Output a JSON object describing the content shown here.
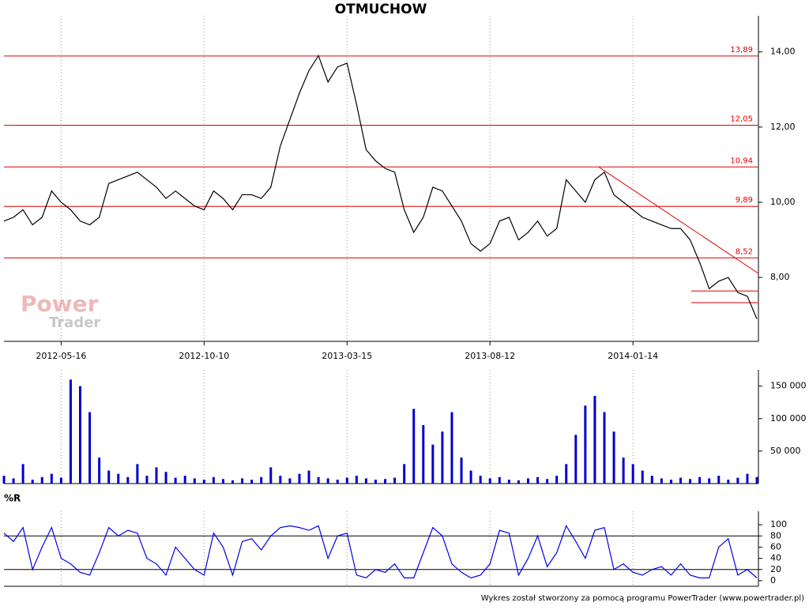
{
  "chart_data": [
    {
      "type": "line",
      "title": "OTMUCHOW",
      "color": "#000000",
      "values": [
        9.5,
        9.6,
        9.8,
        9.4,
        9.6,
        10.3,
        10.0,
        9.8,
        9.5,
        9.4,
        9.6,
        10.5,
        10.6,
        10.7,
        10.8,
        10.6,
        10.4,
        10.1,
        10.3,
        10.1,
        9.9,
        9.8,
        10.3,
        10.1,
        9.8,
        10.2,
        10.2,
        10.1,
        10.4,
        11.5,
        12.2,
        12.9,
        13.5,
        13.9,
        13.2,
        13.6,
        13.7,
        12.6,
        11.4,
        11.1,
        10.9,
        10.8,
        9.8,
        9.2,
        9.6,
        10.4,
        10.3,
        9.9,
        9.5,
        8.9,
        8.7,
        8.9,
        9.5,
        9.6,
        9.0,
        9.2,
        9.5,
        9.1,
        9.3,
        10.6,
        10.3,
        10.0,
        10.6,
        10.8,
        10.2,
        10.0,
        9.8,
        9.6,
        9.5,
        9.4,
        9.3,
        9.3,
        9.0,
        8.4,
        7.7,
        7.9,
        8.0,
        7.6,
        7.5,
        6.9
      ],
      "xticks": [
        {
          "value": 6,
          "label": "2012-05-16"
        },
        {
          "value": 21,
          "label": "2012-10-10"
        },
        {
          "value": 36,
          "label": "2013-03-15"
        },
        {
          "value": 51,
          "label": "2013-08-12"
        },
        {
          "value": 66,
          "label": "2014-01-14"
        }
      ],
      "ylim": [
        6.3,
        14.75
      ],
      "yticks": [
        {
          "value": 8,
          "label": "8,00"
        },
        {
          "value": 10,
          "label": "10,00"
        },
        {
          "value": 12,
          "label": "12,00"
        },
        {
          "value": 14,
          "label": "14,00"
        }
      ],
      "levels": [
        {
          "value": 13.89,
          "label": "13,89"
        },
        {
          "value": 12.05,
          "label": "12,05"
        },
        {
          "value": 10.94,
          "label": "10,94"
        },
        {
          "value": 9.89,
          "label": "9,89"
        },
        {
          "value": 8.52,
          "label": "8,52"
        }
      ],
      "level_color": "#e00000",
      "trendlines": [
        {
          "x": [
            62.4,
            79.2
          ],
          "y": [
            10.94,
            8.1
          ]
        },
        {
          "x": [
            72.1,
            79.2
          ],
          "y": [
            7.64,
            7.64
          ]
        },
        {
          "x": [
            72.1,
            79.2
          ],
          "y": [
            7.33,
            7.33
          ]
        }
      ],
      "logo": [
        "Power",
        "Trader"
      ]
    },
    {
      "type": "bar",
      "color": "#0000cc",
      "values": [
        12000,
        8000,
        30000,
        6000,
        10000,
        15000,
        9000,
        160000,
        150000,
        110000,
        40000,
        20000,
        15000,
        10000,
        30000,
        12000,
        25000,
        18000,
        9000,
        12000,
        8000,
        6000,
        10000,
        7000,
        5000,
        8000,
        6000,
        10000,
        25000,
        12000,
        8000,
        15000,
        20000,
        10000,
        8000,
        6000,
        9000,
        12000,
        8000,
        6000,
        7000,
        9000,
        30000,
        115000,
        90000,
        60000,
        80000,
        110000,
        40000,
        20000,
        12000,
        8000,
        10000,
        6000,
        5000,
        8000,
        10000,
        7000,
        12000,
        30000,
        75000,
        120000,
        135000,
        110000,
        80000,
        40000,
        30000,
        20000,
        12000,
        8000,
        6000,
        9000,
        7000,
        10000,
        8000,
        12000,
        6000,
        9000,
        15000,
        10000
      ],
      "ylim": [
        0,
        163000
      ],
      "yticks": [
        {
          "value": 50000,
          "label": "50 000"
        },
        {
          "value": 100000,
          "label": "100 000"
        },
        {
          "value": 150000,
          "label": "150 000"
        }
      ]
    },
    {
      "type": "line",
      "title": "%R",
      "color": "#0000ee",
      "values": [
        85,
        70,
        95,
        20,
        60,
        95,
        40,
        30,
        15,
        10,
        50,
        95,
        80,
        90,
        85,
        40,
        30,
        10,
        60,
        40,
        20,
        10,
        85,
        60,
        10,
        70,
        75,
        55,
        80,
        95,
        98,
        95,
        90,
        98,
        40,
        80,
        85,
        10,
        5,
        20,
        15,
        30,
        5,
        5,
        50,
        95,
        80,
        30,
        15,
        5,
        10,
        30,
        90,
        85,
        10,
        40,
        80,
        25,
        50,
        98,
        70,
        40,
        90,
        95,
        20,
        30,
        15,
        10,
        20,
        25,
        10,
        30,
        10,
        5,
        5,
        60,
        75,
        10,
        20,
        5
      ],
      "ylim": [
        -10,
        110
      ],
      "yticks": [
        0,
        20,
        40,
        60,
        80,
        100
      ],
      "levels": [
        20,
        80
      ]
    }
  ],
  "footer": "Wykres został stworzony za pomocą programu PowerTrader (www.powertrader.pl)"
}
